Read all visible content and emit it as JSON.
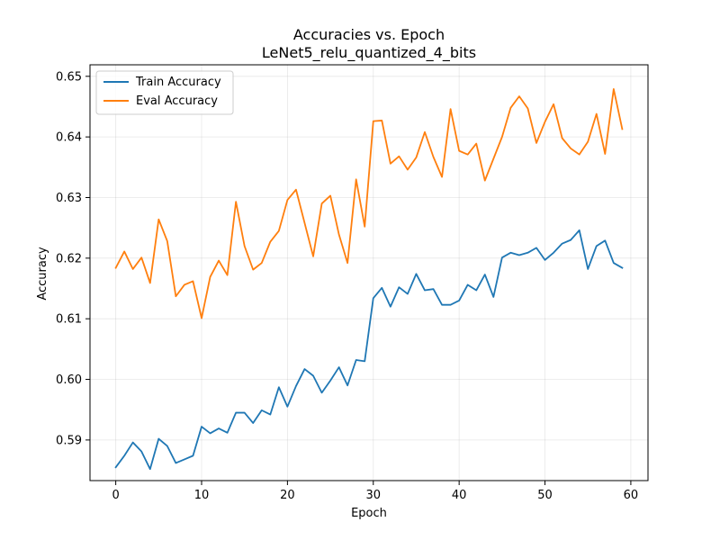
{
  "chart_data": {
    "type": "line",
    "title": "Accuracies vs. Epoch",
    "subtitle": "LeNet5_relu_quantized_4_bits",
    "xlabel": "Epoch",
    "ylabel": "Accuracy",
    "xlim": [
      -3,
      62
    ],
    "ylim": [
      0.5833,
      0.6519
    ],
    "xticks": [
      0,
      10,
      20,
      30,
      40,
      50,
      60
    ],
    "yticks": [
      0.59,
      0.6,
      0.61,
      0.62,
      0.63,
      0.64,
      0.65
    ],
    "ytick_labels": [
      "0.59",
      "0.60",
      "0.61",
      "0.62",
      "0.63",
      "0.64",
      "0.65"
    ],
    "grid": true,
    "legend_position": "top-left",
    "x": [
      0,
      1,
      2,
      3,
      4,
      5,
      6,
      7,
      8,
      9,
      10,
      11,
      12,
      13,
      14,
      15,
      16,
      17,
      18,
      19,
      20,
      21,
      22,
      23,
      24,
      25,
      26,
      27,
      28,
      29,
      30,
      31,
      32,
      33,
      34,
      35,
      36,
      37,
      38,
      39,
      40,
      41,
      42,
      43,
      44,
      45,
      46,
      47,
      48,
      49,
      50,
      51,
      52,
      53,
      54,
      55,
      56,
      57,
      58,
      59
    ],
    "series": [
      {
        "name": "Train Accuracy",
        "color": "#1f77b4",
        "values": [
          0.5855,
          0.5874,
          0.5896,
          0.5881,
          0.5852,
          0.5902,
          0.589,
          0.5862,
          0.5868,
          0.5874,
          0.5922,
          0.5911,
          0.5919,
          0.5912,
          0.5945,
          0.5945,
          0.5928,
          0.5949,
          0.5942,
          0.5987,
          0.5955,
          0.5989,
          0.6017,
          0.6006,
          0.5978,
          0.5998,
          0.602,
          0.599,
          0.6032,
          0.603,
          0.6134,
          0.6151,
          0.612,
          0.6152,
          0.6141,
          0.6174,
          0.6147,
          0.6149,
          0.6123,
          0.6123,
          0.613,
          0.6156,
          0.6147,
          0.6173,
          0.6136,
          0.6201,
          0.6209,
          0.6205,
          0.6209,
          0.6217,
          0.6197,
          0.6209,
          0.6224,
          0.623,
          0.6246,
          0.6182,
          0.622,
          0.6229,
          0.6192,
          0.6184
        ]
      },
      {
        "name": "Eval Accuracy",
        "color": "#ff7f0e",
        "values": [
          0.6184,
          0.6211,
          0.6182,
          0.6201,
          0.6159,
          0.6264,
          0.6228,
          0.6137,
          0.6156,
          0.6162,
          0.6101,
          0.6169,
          0.6196,
          0.6172,
          0.6293,
          0.622,
          0.6181,
          0.6192,
          0.6227,
          0.6245,
          0.6296,
          0.6313,
          0.6258,
          0.6203,
          0.629,
          0.6303,
          0.6239,
          0.6192,
          0.633,
          0.6252,
          0.6426,
          0.6427,
          0.6356,
          0.6368,
          0.6346,
          0.6366,
          0.6408,
          0.6367,
          0.6334,
          0.6446,
          0.6377,
          0.6371,
          0.6389,
          0.6328,
          0.6364,
          0.64,
          0.6448,
          0.6467,
          0.6447,
          0.639,
          0.6425,
          0.6454,
          0.6398,
          0.6381,
          0.6371,
          0.6392,
          0.6438,
          0.6372,
          0.6479,
          0.6413
        ]
      }
    ]
  }
}
